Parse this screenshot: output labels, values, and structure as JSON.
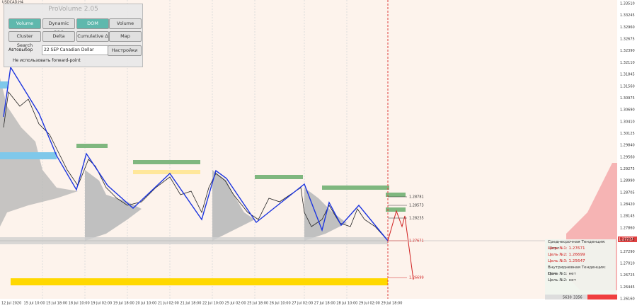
{
  "symbol": "USDCAD,H4",
  "panel": {
    "title": "ProVolume 2.05",
    "buttons": [
      "Volume Profile",
      "Dynamic POC",
      "DOM",
      "Volume",
      "Cluster Search",
      "Delta",
      "Cumulative Δ",
      "Map"
    ],
    "auto_select": "Автовыбор",
    "instrument": "22 SEP Canadian Dollar",
    "settings": "Настройки",
    "forward_point": "Не использовать forward-point"
  },
  "price_axis": [
    "1.33510",
    "1.33245",
    "1.32960",
    "1.32675",
    "1.32390",
    "1.32110",
    "1.31845",
    "1.31560",
    "1.30975",
    "1.30690",
    "1.30410",
    "1.30125",
    "1.29840",
    "1.29560",
    "1.29275",
    "1.28990",
    "1.28705",
    "1.28420",
    "1.28145",
    "1.27860",
    "1.27575",
    "1.27290",
    "1.27010",
    "1.26725",
    "1.26445",
    "1.26160"
  ],
  "current_price": "1.27727",
  "time_axis": [
    "12 Jul 2020",
    "15 Jul 10:00",
    "15 Jul 18:00",
    "18 Jul 10:00",
    "19 Jul 02:00",
    "19 Jul 18:00",
    "20 Jul 10:00",
    "21 Jul 02:00",
    "21 Jul 18:00",
    "22 Jul 10:00",
    "25 Jul 02:00",
    "25 Jul 18:00",
    "26 Jul 10:00",
    "27 Jul 02:00",
    "27 Jul 18:00",
    "28 Jul 10:00",
    "29 Jul 02:00",
    "29 Jul 18:00"
  ],
  "levels": [
    "1.28781",
    "1.28573",
    "1.28235",
    "1.27671",
    "1.26699"
  ],
  "info": {
    "medium_term": "Среднесрочная Тенденция: Шорт",
    "targets": [
      "Цель №1: 1.27671",
      "Цель №2: 1.26699",
      "Цель №3: 1.25647"
    ],
    "intraday": "Внутридневная Тенденция: Лонг",
    "intraday_targets": [
      "Цель №1: нет",
      "Цель №2: нет"
    ],
    "volumes": [
      "5630",
      "3356"
    ]
  }
}
